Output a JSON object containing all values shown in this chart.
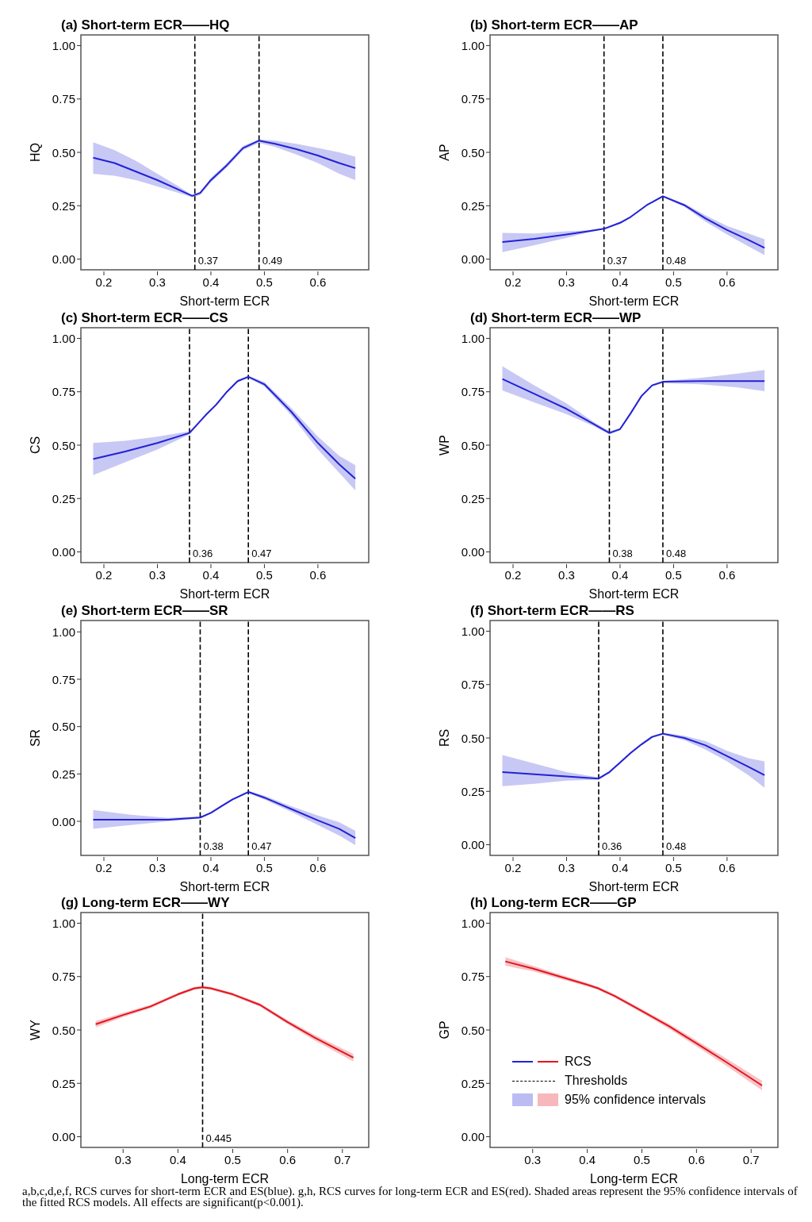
{
  "chart_data": [
    {
      "type": "line",
      "title": "(a) Short-term ECR——HQ",
      "xlabel": "Short-term ECR",
      "ylabel": "HQ",
      "xlim": [
        0.157,
        0.695
      ],
      "ylim": [
        -0.05,
        1.05
      ],
      "xticks": [
        0.2,
        0.3,
        0.4,
        0.5,
        0.6
      ],
      "yticks": [
        {
          "value": 0,
          "label": "0.00"
        },
        {
          "value": 0.25,
          "label": "0.25"
        },
        {
          "value": 0.5,
          "label": "0.50"
        },
        {
          "value": 0.75,
          "label": "0.75"
        },
        {
          "value": 1,
          "label": "1.00"
        }
      ],
      "marker": "none",
      "ref_lines": [
        {
          "axis": "x",
          "value": 0.37,
          "label": "0.37",
          "color": "#000000",
          "line_style": "dashed"
        },
        {
          "axis": "x",
          "value": 0.49,
          "label": "0.49",
          "color": "#000000",
          "line_style": "dashed"
        }
      ],
      "series": [
        {
          "color": "#2222d6",
          "x": [
            0.18,
            0.22,
            0.26,
            0.3,
            0.34,
            0.365,
            0.38,
            0.4,
            0.43,
            0.46,
            0.49,
            0.52,
            0.56,
            0.6,
            0.64,
            0.67
          ],
          "values": [
            0.475,
            0.45,
            0.41,
            0.37,
            0.325,
            0.296,
            0.31,
            0.37,
            0.44,
            0.52,
            0.555,
            0.54,
            0.515,
            0.485,
            0.45,
            0.426
          ],
          "lower": [
            0.4,
            0.39,
            0.37,
            0.34,
            0.31,
            0.29,
            0.3,
            0.36,
            0.43,
            0.51,
            0.545,
            0.525,
            0.49,
            0.45,
            0.4,
            0.37
          ],
          "upper": [
            0.547,
            0.51,
            0.46,
            0.4,
            0.34,
            0.3,
            0.315,
            0.38,
            0.45,
            0.53,
            0.56,
            0.555,
            0.54,
            0.52,
            0.5,
            0.48
          ]
        }
      ]
    },
    {
      "type": "line",
      "title": "(b) Short-term ECR——AP",
      "xlabel": "Short-term ECR",
      "ylabel": "AP",
      "xlim": [
        0.157,
        0.695
      ],
      "ylim": [
        -0.05,
        1.05
      ],
      "xticks": [
        0.2,
        0.3,
        0.4,
        0.5,
        0.6
      ],
      "yticks": [
        {
          "value": 0,
          "label": "0.00"
        },
        {
          "value": 0.25,
          "label": "0.25"
        },
        {
          "value": 0.5,
          "label": "0.50"
        },
        {
          "value": 0.75,
          "label": "0.75"
        },
        {
          "value": 1,
          "label": "1.00"
        }
      ],
      "marker": "none",
      "ref_lines": [
        {
          "axis": "x",
          "value": 0.37,
          "label": "0.37",
          "color": "#000000",
          "line_style": "dashed"
        },
        {
          "axis": "x",
          "value": 0.48,
          "label": "0.48",
          "color": "#000000",
          "line_style": "dashed"
        }
      ],
      "series": [
        {
          "color": "#2222d6",
          "x": [
            0.18,
            0.24,
            0.3,
            0.34,
            0.37,
            0.4,
            0.42,
            0.45,
            0.48,
            0.52,
            0.56,
            0.6,
            0.64,
            0.67
          ],
          "values": [
            0.08,
            0.095,
            0.115,
            0.13,
            0.142,
            0.17,
            0.198,
            0.253,
            0.294,
            0.253,
            0.19,
            0.136,
            0.09,
            0.053
          ],
          "lower": [
            0.033,
            0.065,
            0.1,
            0.125,
            0.14,
            0.165,
            0.195,
            0.25,
            0.29,
            0.245,
            0.175,
            0.115,
            0.06,
            0.019
          ],
          "upper": [
            0.123,
            0.12,
            0.13,
            0.135,
            0.145,
            0.175,
            0.2,
            0.256,
            0.298,
            0.26,
            0.205,
            0.155,
            0.12,
            0.093
          ]
        }
      ]
    },
    {
      "type": "line",
      "title": "(c) Short-term ECR——CS",
      "xlabel": "Short-term ECR",
      "ylabel": "CS",
      "xlim": [
        0.157,
        0.695
      ],
      "ylim": [
        -0.05,
        1.05
      ],
      "xticks": [
        0.2,
        0.3,
        0.4,
        0.5,
        0.6
      ],
      "yticks": [
        {
          "value": 0,
          "label": "0.00"
        },
        {
          "value": 0.25,
          "label": "0.25"
        },
        {
          "value": 0.5,
          "label": "0.50"
        },
        {
          "value": 0.75,
          "label": "0.75"
        },
        {
          "value": 1,
          "label": "1.00"
        }
      ],
      "marker": "none",
      "ref_lines": [
        {
          "axis": "x",
          "value": 0.36,
          "label": "0.36",
          "color": "#000000",
          "line_style": "dashed"
        },
        {
          "axis": "x",
          "value": 0.47,
          "label": "0.47",
          "color": "#000000",
          "line_style": "dashed"
        }
      ],
      "series": [
        {
          "color": "#2222d6",
          "x": [
            0.18,
            0.24,
            0.3,
            0.36,
            0.39,
            0.41,
            0.43,
            0.45,
            0.47,
            0.5,
            0.55,
            0.6,
            0.64,
            0.67
          ],
          "values": [
            0.435,
            0.47,
            0.51,
            0.557,
            0.64,
            0.69,
            0.75,
            0.8,
            0.82,
            0.785,
            0.657,
            0.51,
            0.41,
            0.343
          ],
          "lower": [
            0.36,
            0.42,
            0.48,
            0.55,
            0.635,
            0.685,
            0.745,
            0.795,
            0.815,
            0.775,
            0.64,
            0.48,
            0.37,
            0.288
          ],
          "upper": [
            0.51,
            0.52,
            0.54,
            0.565,
            0.645,
            0.695,
            0.755,
            0.805,
            0.825,
            0.795,
            0.675,
            0.54,
            0.45,
            0.406
          ]
        }
      ]
    },
    {
      "type": "line",
      "title": "(d) Short-term ECR——WP",
      "xlabel": "Short-term ECR",
      "ylabel": "WP",
      "xlim": [
        0.157,
        0.695
      ],
      "ylim": [
        -0.05,
        1.05
      ],
      "xticks": [
        0.2,
        0.3,
        0.4,
        0.5,
        0.6
      ],
      "yticks": [
        {
          "value": 0,
          "label": "0.00"
        },
        {
          "value": 0.25,
          "label": "0.25"
        },
        {
          "value": 0.5,
          "label": "0.50"
        },
        {
          "value": 0.75,
          "label": "0.75"
        },
        {
          "value": 1,
          "label": "1.00"
        }
      ],
      "marker": "none",
      "ref_lines": [
        {
          "axis": "x",
          "value": 0.38,
          "label": "0.38",
          "color": "#000000",
          "line_style": "dashed"
        },
        {
          "axis": "x",
          "value": 0.48,
          "label": "0.48",
          "color": "#000000",
          "line_style": "dashed"
        }
      ],
      "series": [
        {
          "color": "#2222d6",
          "x": [
            0.18,
            0.24,
            0.3,
            0.35,
            0.38,
            0.4,
            0.42,
            0.44,
            0.46,
            0.48,
            0.55,
            0.62,
            0.67
          ],
          "values": [
            0.81,
            0.74,
            0.67,
            0.6,
            0.557,
            0.575,
            0.65,
            0.73,
            0.78,
            0.797,
            0.8,
            0.8,
            0.8
          ],
          "lower": [
            0.756,
            0.7,
            0.645,
            0.59,
            0.55,
            0.57,
            0.645,
            0.725,
            0.775,
            0.79,
            0.785,
            0.77,
            0.753
          ],
          "upper": [
            0.87,
            0.78,
            0.695,
            0.61,
            0.565,
            0.58,
            0.655,
            0.735,
            0.785,
            0.8,
            0.815,
            0.835,
            0.852
          ]
        }
      ]
    },
    {
      "type": "line",
      "title": "(e) Short-term ECR——SR",
      "xlabel": "Short-term ECR",
      "ylabel": "SR",
      "xlim": [
        0.157,
        0.695
      ],
      "ylim": [
        -0.18,
        1.06
      ],
      "xticks": [
        0.2,
        0.3,
        0.4,
        0.5,
        0.6
      ],
      "yticks": [
        {
          "value": 0,
          "label": "0.00"
        },
        {
          "value": 0.25,
          "label": "0.25"
        },
        {
          "value": 0.5,
          "label": "0.50"
        },
        {
          "value": 0.75,
          "label": "0.75"
        },
        {
          "value": 1,
          "label": "1.00"
        }
      ],
      "marker": "none",
      "ref_lines": [
        {
          "axis": "x",
          "value": 0.38,
          "label": "0.38",
          "color": "#000000",
          "line_style": "dashed"
        },
        {
          "axis": "x",
          "value": 0.47,
          "label": "0.47",
          "color": "#000000",
          "line_style": "dashed"
        }
      ],
      "series": [
        {
          "color": "#2222d6",
          "x": [
            0.18,
            0.25,
            0.32,
            0.38,
            0.4,
            0.42,
            0.44,
            0.47,
            0.5,
            0.55,
            0.6,
            0.64,
            0.67
          ],
          "values": [
            0.008,
            0.008,
            0.009,
            0.02,
            0.045,
            0.08,
            0.115,
            0.155,
            0.125,
            0.065,
            0.005,
            -0.04,
            -0.088
          ],
          "lower": [
            -0.04,
            -0.02,
            0.0,
            0.015,
            0.04,
            0.075,
            0.11,
            0.15,
            0.115,
            0.05,
            -0.02,
            -0.075,
            -0.126
          ],
          "upper": [
            0.06,
            0.035,
            0.018,
            0.025,
            0.05,
            0.085,
            0.12,
            0.16,
            0.135,
            0.08,
            0.03,
            -0.005,
            -0.05
          ]
        }
      ]
    },
    {
      "type": "line",
      "title": "(f) Short-term ECR——RS",
      "xlabel": "Short-term ECR",
      "ylabel": "RS",
      "xlim": [
        0.157,
        0.695
      ],
      "ylim": [
        -0.05,
        1.05
      ],
      "xticks": [
        0.2,
        0.3,
        0.4,
        0.5,
        0.6
      ],
      "yticks": [
        {
          "value": 0,
          "label": "0.00"
        },
        {
          "value": 0.25,
          "label": "0.25"
        },
        {
          "value": 0.5,
          "label": "0.50"
        },
        {
          "value": 0.75,
          "label": "0.75"
        },
        {
          "value": 1,
          "label": "1.00"
        }
      ],
      "marker": "none",
      "ref_lines": [
        {
          "axis": "x",
          "value": 0.36,
          "label": "0.36",
          "color": "#000000",
          "line_style": "dashed"
        },
        {
          "axis": "x",
          "value": 0.48,
          "label": "0.48",
          "color": "#000000",
          "line_style": "dashed"
        }
      ],
      "series": [
        {
          "color": "#2222d6",
          "x": [
            0.18,
            0.24,
            0.3,
            0.36,
            0.38,
            0.4,
            0.42,
            0.44,
            0.46,
            0.48,
            0.52,
            0.56,
            0.6,
            0.64,
            0.67
          ],
          "values": [
            0.34,
            0.33,
            0.32,
            0.31,
            0.34,
            0.385,
            0.43,
            0.47,
            0.505,
            0.52,
            0.5,
            0.465,
            0.415,
            0.365,
            0.326
          ],
          "lower": [
            0.274,
            0.285,
            0.3,
            0.305,
            0.335,
            0.38,
            0.425,
            0.465,
            0.5,
            0.515,
            0.49,
            0.445,
            0.39,
            0.325,
            0.267
          ],
          "upper": [
            0.42,
            0.38,
            0.34,
            0.315,
            0.345,
            0.39,
            0.435,
            0.475,
            0.51,
            0.525,
            0.51,
            0.485,
            0.44,
            0.405,
            0.39
          ]
        }
      ]
    },
    {
      "type": "line",
      "title": "(g) Long-term ECR——WY",
      "xlabel": "Long-term ECR",
      "ylabel": "WY",
      "xlim": [
        0.223,
        0.748
      ],
      "ylim": [
        -0.05,
        1.05
      ],
      "xticks": [
        0.3,
        0.4,
        0.5,
        0.6,
        0.7
      ],
      "yticks": [
        {
          "value": 0,
          "label": "0.00"
        },
        {
          "value": 0.25,
          "label": "0.25"
        },
        {
          "value": 0.5,
          "label": "0.50"
        },
        {
          "value": 0.75,
          "label": "0.75"
        },
        {
          "value": 1,
          "label": "1.00"
        }
      ],
      "marker": "none",
      "ref_lines": [
        {
          "axis": "x",
          "value": 0.445,
          "label": "0.445",
          "color": "#000000",
          "line_style": "dashed"
        }
      ],
      "series": [
        {
          "color": "#e3141e",
          "x": [
            0.25,
            0.3,
            0.35,
            0.4,
            0.43,
            0.445,
            0.46,
            0.5,
            0.55,
            0.6,
            0.65,
            0.72
          ],
          "values": [
            0.527,
            0.57,
            0.61,
            0.667,
            0.695,
            0.7,
            0.695,
            0.667,
            0.617,
            0.537,
            0.463,
            0.37
          ],
          "lower": [
            0.512,
            0.56,
            0.602,
            0.66,
            0.688,
            0.693,
            0.688,
            0.66,
            0.609,
            0.528,
            0.45,
            0.352
          ],
          "upper": [
            0.542,
            0.58,
            0.618,
            0.674,
            0.702,
            0.707,
            0.702,
            0.674,
            0.625,
            0.546,
            0.476,
            0.388
          ]
        }
      ]
    },
    {
      "type": "line",
      "title": "(h) Long-term ECR——GP",
      "xlabel": "Long-term ECR",
      "ylabel": "GP",
      "xlim": [
        0.222,
        0.749
      ],
      "ylim": [
        -0.05,
        1.05
      ],
      "xticks": [
        0.3,
        0.4,
        0.5,
        0.6,
        0.7
      ],
      "yticks": [
        {
          "value": 0,
          "label": "0.00"
        },
        {
          "value": 0.25,
          "label": "0.25"
        },
        {
          "value": 0.5,
          "label": "0.50"
        },
        {
          "value": 0.75,
          "label": "0.75"
        },
        {
          "value": 1,
          "label": "1.00"
        }
      ],
      "marker": "none",
      "legend": "bottom left",
      "annotations": [
        "Thresholds",
        "95% confidence intervals",
        "a,b,c,d,e,f, RCS curves for short-term ECR and ES(blue). g,h, RCS curves for long-term ECR and ES(red). Shaded areas represent the 95% confidence intervals of the fitted RCS models. All effects are significant(p<0.001)."
      ],
      "series": [
        {
          "name": "RCS",
          "color": "#e3141e",
          "x": [
            0.25,
            0.3,
            0.35,
            0.4,
            0.42,
            0.45,
            0.5,
            0.55,
            0.6,
            0.65,
            0.72
          ],
          "values": [
            0.821,
            0.788,
            0.75,
            0.712,
            0.695,
            0.659,
            0.589,
            0.517,
            0.437,
            0.357,
            0.24
          ],
          "lower": [
            0.801,
            0.775,
            0.74,
            0.704,
            0.688,
            0.651,
            0.58,
            0.506,
            0.423,
            0.34,
            0.218
          ],
          "upper": [
            0.841,
            0.801,
            0.76,
            0.72,
            0.702,
            0.667,
            0.598,
            0.528,
            0.451,
            0.374,
            0.262
          ]
        }
      ]
    }
  ]
}
